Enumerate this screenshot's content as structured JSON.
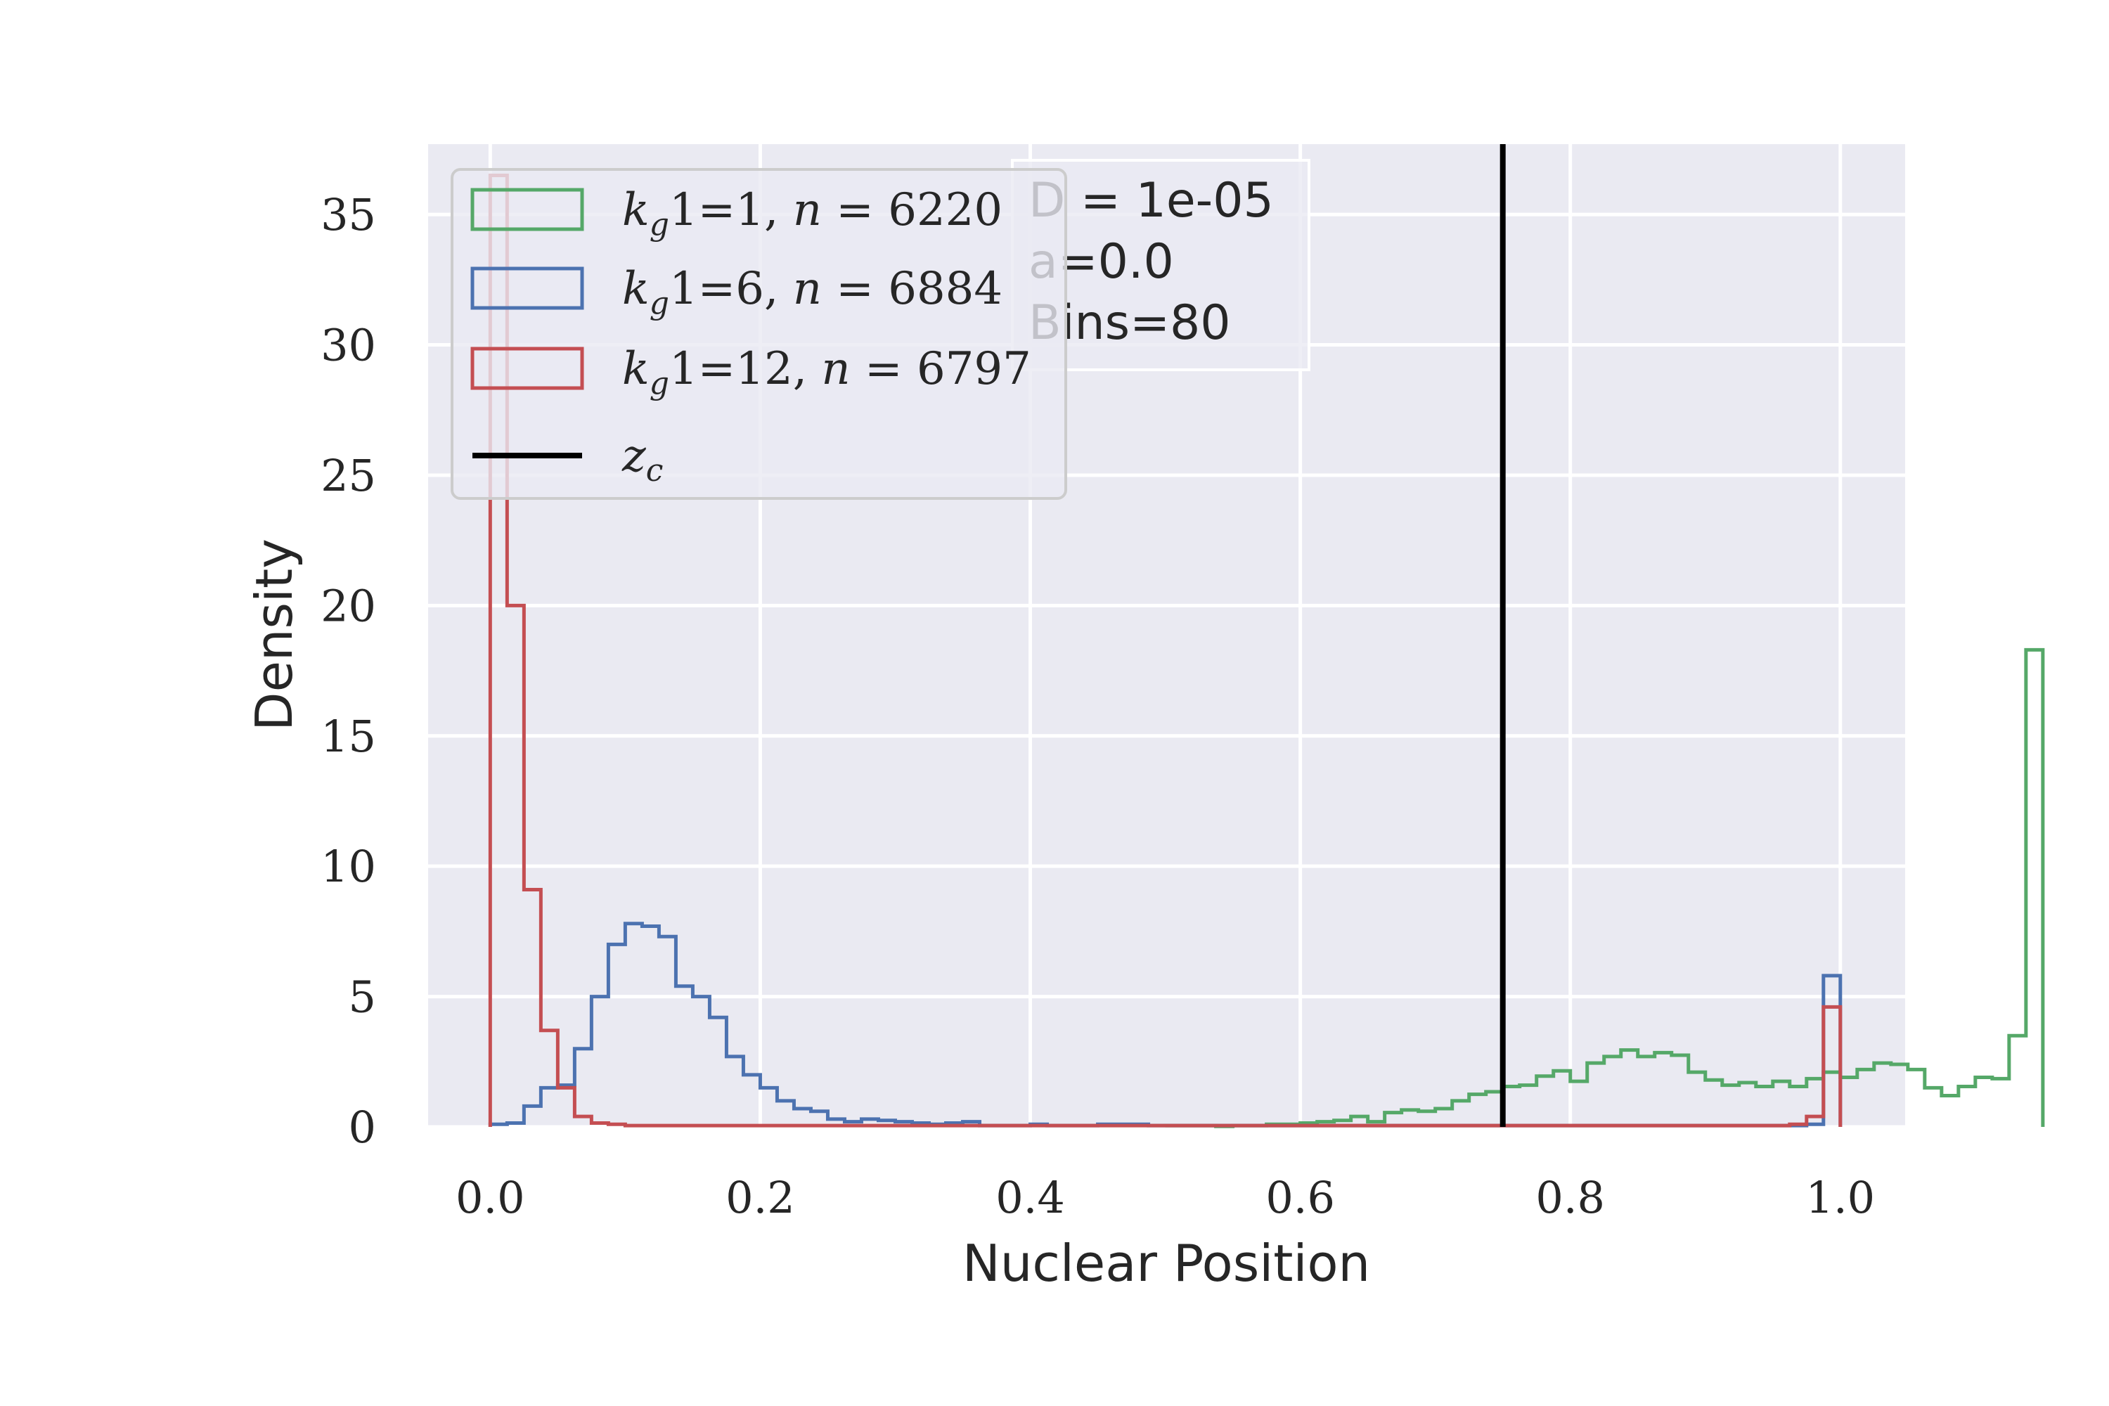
{
  "chart_data": {
    "type": "histogram",
    "xlabel": "Nuclear Position",
    "ylabel": "Density",
    "xlim": [
      -0.046,
      1.048
    ],
    "ylim": [
      0,
      37.7
    ],
    "xticks": [
      "0.0",
      "0.2",
      "0.4",
      "0.6",
      "0.8",
      "1.0"
    ],
    "yticks": [
      "0",
      "5",
      "10",
      "15",
      "20",
      "25",
      "30",
      "35"
    ],
    "grid": true,
    "legend_position": "top-left",
    "bin_width": 0.0125,
    "bins": 80,
    "series": [
      {
        "name": "k_g1=1, n = 6220",
        "color": "#55a868",
        "start": 0.5,
        "values": [
          0.05,
          0.05,
          0.05,
          0.02,
          0.05,
          0.05,
          0.1,
          0.1,
          0.15,
          0.2,
          0.25,
          0.4,
          0.2,
          0.55,
          0.65,
          0.6,
          0.7,
          1.0,
          1.25,
          1.35,
          1.55,
          1.6,
          1.95,
          2.15,
          1.75,
          2.45,
          2.7,
          2.95,
          2.7,
          2.85,
          2.75,
          2.1,
          1.8,
          1.6,
          1.7,
          1.55,
          1.75,
          1.55,
          1.85,
          2.1,
          1.9,
          2.2,
          2.45,
          2.4,
          2.2,
          1.5,
          1.2,
          1.55,
          1.9,
          1.85,
          3.5,
          18.3
        ]
      },
      {
        "name": "k_g1=6, n = 6884",
        "color": "#4c72b0",
        "start": 0.0,
        "values": [
          0.1,
          0.15,
          0.8,
          1.5,
          1.6,
          3.0,
          5.0,
          7.0,
          7.8,
          7.7,
          7.3,
          5.4,
          5.0,
          4.2,
          2.7,
          2.0,
          1.5,
          1.0,
          0.7,
          0.6,
          0.3,
          0.2,
          0.3,
          0.25,
          0.2,
          0.15,
          0.1,
          0.15,
          0.2,
          0.05,
          0.05,
          0.05,
          0.1,
          0.05,
          0.05,
          0.05,
          0.1,
          0.1,
          0.1,
          0.05,
          0.05,
          0.05,
          0.05,
          0.05,
          0.05,
          0.05,
          0.05,
          0.05,
          0.05,
          0.05,
          0.05,
          0.05,
          0.05,
          0.05,
          0.05,
          0.05,
          0.05,
          0.05,
          0.05,
          0.05,
          0.05,
          0.05,
          0.05,
          0.05,
          0.05,
          0.05,
          0.05,
          0.05,
          0.05,
          0.05,
          0.05,
          0.05,
          0.05,
          0.05,
          0.05,
          0.05,
          0.05,
          0.05,
          0.1,
          5.8
        ]
      },
      {
        "name": "k_g1=12, n = 6797",
        "color": "#c44e52",
        "start": 0.0,
        "values": [
          36.5,
          20.0,
          9.1,
          3.7,
          1.5,
          0.4,
          0.15,
          0.1,
          0.05,
          0.05,
          0.05,
          0.05,
          0.05,
          0.05,
          0.05,
          0.05,
          0.05,
          0.05,
          0.05,
          0.05,
          0.05,
          0.05,
          0.05,
          0.05,
          0.05,
          0.05,
          0.05,
          0.05,
          0.05,
          0.05,
          0.05,
          0.05,
          0.05,
          0.05,
          0.05,
          0.05,
          0.05,
          0.05,
          0.05,
          0.05,
          0.05,
          0.05,
          0.05,
          0.05,
          0.05,
          0.05,
          0.05,
          0.05,
          0.05,
          0.05,
          0.05,
          0.05,
          0.05,
          0.05,
          0.05,
          0.05,
          0.05,
          0.05,
          0.05,
          0.05,
          0.05,
          0.05,
          0.05,
          0.05,
          0.05,
          0.05,
          0.05,
          0.05,
          0.05,
          0.05,
          0.05,
          0.05,
          0.05,
          0.05,
          0.05,
          0.05,
          0.05,
          0.1,
          0.4,
          4.6
        ]
      }
    ],
    "vline": {
      "name": "z_c",
      "x": 0.75,
      "color": "#000000"
    }
  },
  "legend": {
    "entries": [
      {
        "italic": "k",
        "sub": "g",
        "text": "1=1, ",
        "italic2": "n",
        "rest": " = 6220"
      },
      {
        "italic": "k",
        "sub": "g",
        "text": "1=6, ",
        "italic2": "n",
        "rest": " = 6884"
      },
      {
        "italic": "k",
        "sub": "g",
        "text": "1=12, ",
        "italic2": "n",
        "rest": " = 6797"
      },
      {
        "italic": "z",
        "sub": "c",
        "text": "",
        "italic2": "",
        "rest": ""
      }
    ]
  },
  "info_box": {
    "line1": "D = 1e-05",
    "line2": "a=0.0",
    "line3": "Bins=80"
  }
}
